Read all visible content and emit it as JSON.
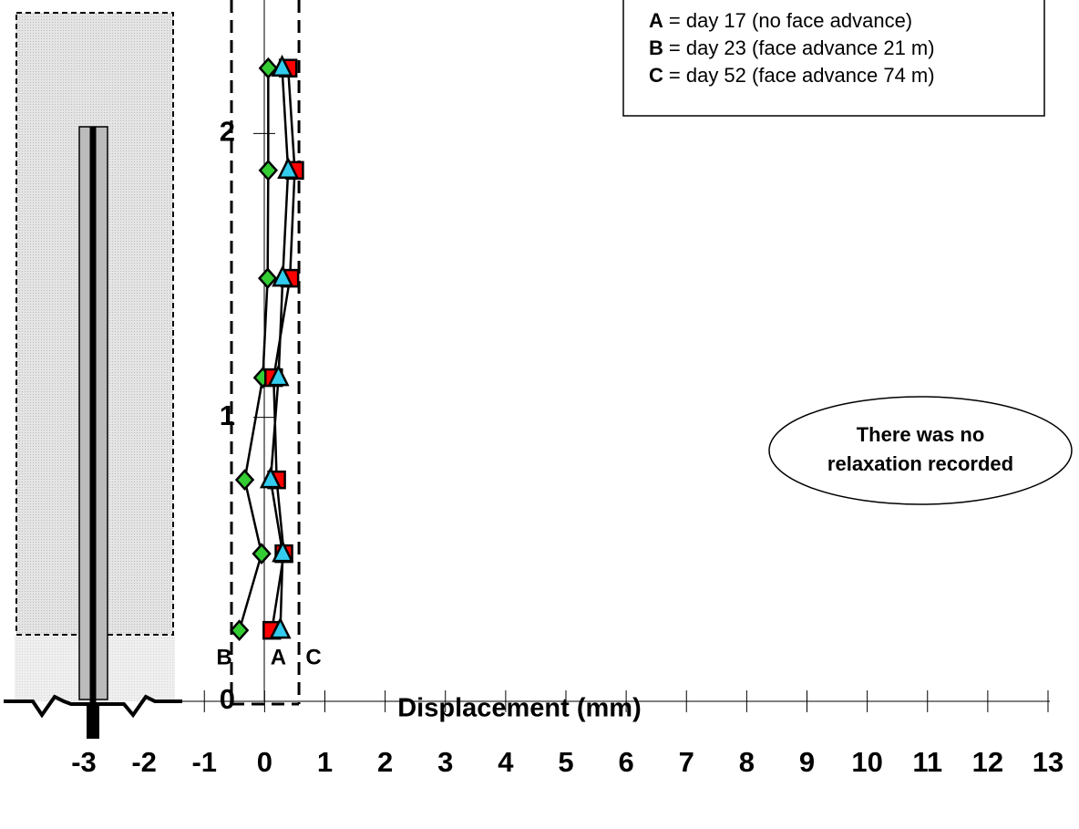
{
  "chart_data": {
    "type": "line",
    "x_label": "Displacement (mm)",
    "xlim": [
      -3,
      13
    ],
    "xticks": [
      -3,
      -2,
      -1,
      0,
      1,
      2,
      3,
      4,
      5,
      6,
      7,
      8,
      9,
      10,
      11,
      12,
      13
    ],
    "ylim": [
      0,
      2.47
    ],
    "yticks": [
      0,
      1,
      2
    ],
    "series": [
      {
        "color": "#33cc33",
        "marker": "diamond",
        "y": [
          0.25,
          0.52,
          0.78,
          1.14,
          1.49,
          1.87,
          2.23
        ],
        "values": [
          -0.42,
          -0.05,
          -0.33,
          -0.03,
          0.05,
          0.06,
          0.06
        ]
      },
      {
        "color": "#ff0000",
        "marker": "square",
        "y": [
          0.25,
          0.52,
          0.78,
          1.14,
          1.49,
          1.87,
          2.23
        ],
        "values": [
          0.12,
          0.32,
          0.2,
          0.15,
          0.42,
          0.5,
          0.39
        ]
      },
      {
        "color": "#33ccee",
        "marker": "triangle",
        "y": [
          0.25,
          0.52,
          0.78,
          1.14,
          1.49,
          1.87,
          2.23
        ],
        "values": [
          0.26,
          0.3,
          0.1,
          0.23,
          0.3,
          0.39,
          0.29
        ]
      }
    ],
    "reference_lines": [
      {
        "label": "B",
        "x": -0.55
      },
      {
        "label": "A",
        "x": 0
      },
      {
        "label": "C",
        "x": 0.57
      }
    ],
    "legend": [
      {
        "key": "A",
        "text": "= day 17  (no face advance)"
      },
      {
        "key": "B",
        "text": "= day 23  (face advance 21 m)"
      },
      {
        "key": "C",
        "text": "= day 52  (face advance 74 m)"
      }
    ],
    "annotation": [
      "There was no",
      "relaxation recorded"
    ]
  }
}
